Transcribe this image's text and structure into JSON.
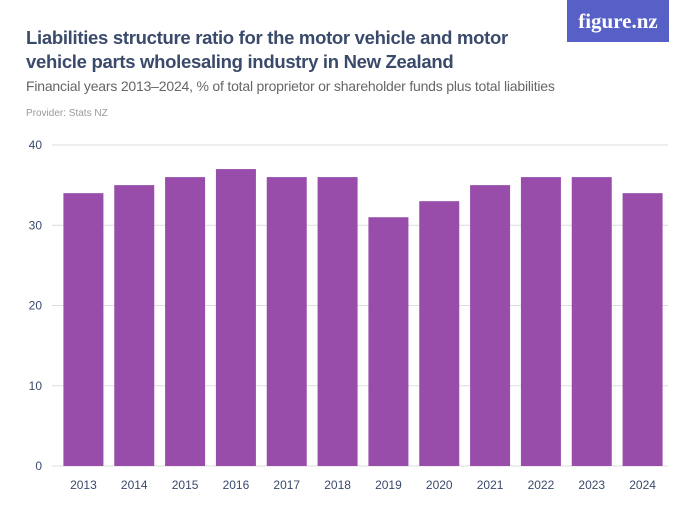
{
  "header": {
    "title": "Liabilities structure ratio for the motor vehicle and motor vehicle parts wholesaling industry in New Zealand",
    "subtitle": "Financial years 2013–2024, % of total proprietor or shareholder funds plus total liabilities",
    "provider": "Provider: Stats NZ",
    "logo": "figure.nz"
  },
  "colors": {
    "bar": "#984dab",
    "grid": "#dddddd",
    "logo_bg": "#5660c7"
  },
  "chart_data": {
    "type": "bar",
    "title": "Liabilities structure ratio for the motor vehicle and motor vehicle parts wholesaling industry in New Zealand",
    "categories": [
      "2013",
      "2014",
      "2015",
      "2016",
      "2017",
      "2018",
      "2019",
      "2020",
      "2021",
      "2022",
      "2023",
      "2024"
    ],
    "values": [
      34,
      35,
      36,
      37,
      36,
      36,
      31,
      33,
      35,
      36,
      36,
      34
    ],
    "ylim": [
      0,
      40
    ],
    "yticks": [
      0,
      10,
      20,
      30,
      40
    ],
    "grid": true,
    "xlabel": "",
    "ylabel": ""
  }
}
